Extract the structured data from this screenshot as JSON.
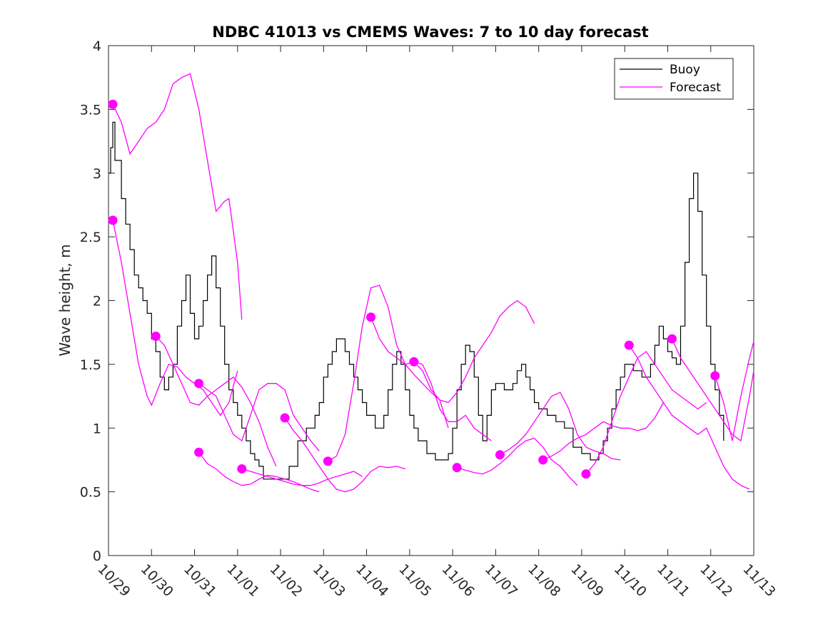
{
  "chart_data": {
    "type": "line",
    "title": "NDBC 41013 vs CMEMS Waves: 7 to 10 day forecast",
    "xlabel": "",
    "ylabel": "Wave height, m",
    "xlim": [
      0,
      15
    ],
    "ylim": [
      0,
      4
    ],
    "yticks": [
      0,
      0.5,
      1,
      1.5,
      2,
      2.5,
      3,
      3.5,
      4
    ],
    "ytick_labels": [
      "0",
      "0.5",
      "1",
      "1.5",
      "2",
      "2.5",
      "3",
      "3.5",
      "4"
    ],
    "xtick_labels": [
      "10/29",
      "10/30",
      "10/31",
      "11/01",
      "11/02",
      "11/03",
      "11/04",
      "11/05",
      "11/06",
      "11/07",
      "11/08",
      "11/09",
      "11/10",
      "11/11",
      "11/12",
      "11/13"
    ],
    "legend": {
      "position": "top-right",
      "entries": [
        "Buoy",
        "Forecast"
      ]
    },
    "colors": {
      "buoy": "#000000",
      "forecast": "#ff00ff",
      "axis": "#262626"
    },
    "buoy": {
      "name": "Buoy",
      "x": [
        0,
        0.05,
        0.1,
        0.15,
        0.2,
        0.3,
        0.4,
        0.5,
        0.6,
        0.7,
        0.8,
        0.9,
        1.0,
        1.1,
        1.2,
        1.3,
        1.4,
        1.5,
        1.6,
        1.7,
        1.8,
        1.9,
        2.0,
        2.1,
        2.2,
        2.3,
        2.4,
        2.5,
        2.6,
        2.7,
        2.8,
        2.9,
        3.0,
        3.1,
        3.2,
        3.3,
        3.4,
        3.5,
        3.6,
        3.8,
        4.0,
        4.2,
        4.4,
        4.6,
        4.8,
        4.9,
        5.0,
        5.1,
        5.2,
        5.3,
        5.4,
        5.5,
        5.6,
        5.7,
        5.8,
        5.9,
        6.0,
        6.2,
        6.4,
        6.5,
        6.6,
        6.7,
        6.8,
        6.9,
        7.0,
        7.1,
        7.2,
        7.4,
        7.6,
        7.8,
        7.9,
        8.0,
        8.1,
        8.2,
        8.3,
        8.4,
        8.5,
        8.6,
        8.7,
        8.8,
        8.9,
        9.0,
        9.2,
        9.4,
        9.5,
        9.6,
        9.7,
        9.8,
        9.9,
        10.0,
        10.2,
        10.4,
        10.6,
        10.8,
        11.0,
        11.2,
        11.4,
        11.5,
        11.6,
        11.7,
        11.8,
        11.9,
        12.0,
        12.2,
        12.4,
        12.6,
        12.7,
        12.8,
        12.9,
        13.0,
        13.1,
        13.2,
        13.3,
        13.4,
        13.5,
        13.6,
        13.7,
        13.8,
        13.9,
        14.0,
        14.1,
        14.2,
        14.3
      ],
      "values": [
        3.0,
        3.2,
        3.4,
        3.1,
        3.1,
        2.8,
        2.6,
        2.4,
        2.2,
        2.1,
        2.0,
        1.9,
        1.7,
        1.6,
        1.4,
        1.3,
        1.4,
        1.5,
        1.8,
        2.0,
        2.2,
        1.9,
        1.7,
        1.8,
        2.0,
        2.2,
        2.35,
        2.1,
        1.8,
        1.5,
        1.3,
        1.2,
        1.1,
        1.0,
        0.9,
        0.8,
        0.75,
        0.7,
        0.6,
        0.6,
        0.6,
        0.7,
        0.9,
        1.0,
        1.1,
        1.2,
        1.4,
        1.5,
        1.6,
        1.7,
        1.7,
        1.6,
        1.5,
        1.4,
        1.3,
        1.2,
        1.1,
        1.0,
        1.1,
        1.3,
        1.5,
        1.6,
        1.5,
        1.3,
        1.1,
        1.0,
        0.9,
        0.8,
        0.75,
        0.75,
        0.8,
        1.0,
        1.3,
        1.5,
        1.65,
        1.6,
        1.4,
        1.1,
        0.9,
        1.1,
        1.3,
        1.35,
        1.3,
        1.35,
        1.45,
        1.5,
        1.4,
        1.3,
        1.2,
        1.15,
        1.1,
        1.05,
        1.0,
        0.85,
        0.8,
        0.75,
        0.8,
        0.9,
        1.0,
        1.15,
        1.3,
        1.4,
        1.5,
        1.45,
        1.4,
        1.5,
        1.65,
        1.8,
        1.7,
        1.6,
        1.55,
        1.5,
        1.8,
        2.3,
        2.8,
        3.0,
        2.7,
        2.2,
        1.8,
        1.5,
        1.3,
        1.1,
        0.9
      ]
    },
    "forecasts": [
      {
        "name": "Forecast",
        "x": [
          0.1,
          0.3,
          0.5,
          0.7,
          0.9,
          1.1,
          1.3,
          1.5,
          1.7,
          1.9,
          2.1,
          2.3,
          2.5,
          2.7,
          2.8,
          3.0,
          3.1
        ],
        "values": [
          3.54,
          3.4,
          3.15,
          3.25,
          3.35,
          3.4,
          3.5,
          3.7,
          3.75,
          3.78,
          3.5,
          3.1,
          2.7,
          2.78,
          2.8,
          2.3,
          1.85
        ]
      },
      {
        "name": "Forecast",
        "x": [
          0.1,
          0.3,
          0.5,
          0.7,
          0.9,
          1.0,
          1.2,
          1.4,
          1.6,
          1.8,
          2.0,
          2.2,
          2.4,
          2.6,
          2.8,
          3.0
        ],
        "values": [
          2.63,
          2.3,
          1.9,
          1.5,
          1.25,
          1.18,
          1.35,
          1.5,
          1.48,
          1.4,
          1.35,
          1.3,
          1.2,
          1.1,
          1.2,
          1.45
        ]
      },
      {
        "name": "Forecast",
        "x": [
          1.1,
          1.3,
          1.5,
          1.7,
          1.9,
          2.1,
          2.3,
          2.5,
          2.7,
          2.9,
          3.1,
          3.3,
          3.5,
          3.7,
          3.9
        ],
        "values": [
          1.72,
          1.65,
          1.5,
          1.35,
          1.2,
          1.18,
          1.25,
          1.3,
          1.35,
          1.4,
          1.32,
          1.2,
          1.05,
          0.85,
          0.7
        ]
      },
      {
        "name": "Forecast",
        "x": [
          2.1,
          2.3,
          2.5,
          2.7,
          2.9,
          3.1,
          3.3,
          3.5,
          3.7,
          3.9,
          4.1,
          4.3,
          4.5,
          4.7,
          4.9
        ],
        "values": [
          1.35,
          1.3,
          1.25,
          1.1,
          0.95,
          0.9,
          1.1,
          1.3,
          1.35,
          1.35,
          1.3,
          1.1,
          1.0,
          0.9,
          0.82
        ]
      },
      {
        "name": "Forecast",
        "x": [
          2.1,
          2.3,
          2.5,
          2.7,
          2.9,
          3.1,
          3.3,
          3.5,
          3.7,
          3.9,
          4.1,
          4.3,
          4.5,
          4.7,
          4.9
        ],
        "values": [
          0.81,
          0.72,
          0.68,
          0.62,
          0.58,
          0.55,
          0.56,
          0.6,
          0.63,
          0.62,
          0.6,
          0.58,
          0.55,
          0.52,
          0.5
        ]
      },
      {
        "name": "Forecast",
        "x": [
          3.1,
          3.3,
          3.5,
          3.7,
          3.9,
          4.1,
          4.3,
          4.5,
          4.7,
          4.9,
          5.1,
          5.3,
          5.5,
          5.7,
          5.9
        ],
        "values": [
          0.68,
          0.66,
          0.64,
          0.62,
          0.6,
          0.58,
          0.56,
          0.55,
          0.55,
          0.57,
          0.6,
          0.62,
          0.64,
          0.66,
          0.62
        ]
      },
      {
        "name": "Forecast",
        "x": [
          4.1,
          4.3,
          4.5,
          4.7,
          4.9,
          5.1,
          5.3,
          5.5,
          5.7,
          5.9,
          6.1,
          6.3,
          6.5,
          6.7,
          6.9
        ],
        "values": [
          1.08,
          0.98,
          0.9,
          0.8,
          0.7,
          0.6,
          0.52,
          0.5,
          0.52,
          0.58,
          0.66,
          0.7,
          0.69,
          0.7,
          0.68
        ]
      },
      {
        "name": "Forecast",
        "x": [
          5.1,
          5.3,
          5.5,
          5.7,
          5.9,
          6.1,
          6.3,
          6.5,
          6.7,
          6.9,
          7.1,
          7.3,
          7.5,
          7.7,
          7.9
        ],
        "values": [
          0.74,
          0.78,
          0.95,
          1.35,
          1.8,
          2.1,
          2.12,
          1.95,
          1.65,
          1.5,
          1.42,
          1.35,
          1.28,
          1.22,
          1.0
        ]
      },
      {
        "name": "Forecast",
        "x": [
          6.1,
          6.3,
          6.5,
          6.7,
          6.9,
          7.1,
          7.3,
          7.5,
          7.7,
          7.9,
          8.1,
          8.3,
          8.5,
          8.7,
          8.9
        ],
        "values": [
          1.87,
          1.7,
          1.6,
          1.55,
          1.5,
          1.52,
          1.5,
          1.35,
          1.15,
          1.05,
          1.05,
          1.1,
          1.0,
          0.95,
          0.9
        ]
      },
      {
        "name": "Forecast",
        "x": [
          7.1,
          7.3,
          7.5,
          7.7,
          7.9,
          8.1,
          8.3,
          8.5,
          8.7,
          8.9,
          9.1,
          9.3,
          9.5,
          9.7,
          9.9
        ],
        "values": [
          1.52,
          1.45,
          1.3,
          1.22,
          1.2,
          1.28,
          1.4,
          1.55,
          1.65,
          1.75,
          1.88,
          1.95,
          2.0,
          1.95,
          1.82
        ]
      },
      {
        "name": "Forecast",
        "x": [
          8.1,
          8.3,
          8.5,
          8.7,
          8.9,
          9.1,
          9.3,
          9.5,
          9.7,
          9.9,
          10.1,
          10.3,
          10.5,
          10.7,
          10.9
        ],
        "values": [
          0.69,
          0.67,
          0.65,
          0.64,
          0.67,
          0.72,
          0.78,
          0.85,
          0.9,
          0.92,
          0.85,
          0.75,
          0.7,
          0.62,
          0.55
        ]
      },
      {
        "name": "Forecast",
        "x": [
          9.1,
          9.3,
          9.5,
          9.7,
          9.9,
          10.1,
          10.3,
          10.5,
          10.7,
          10.9,
          11.1,
          11.3,
          11.5,
          11.7,
          11.9
        ],
        "values": [
          0.79,
          0.83,
          0.88,
          0.95,
          1.05,
          1.15,
          1.25,
          1.28,
          1.15,
          0.95,
          0.85,
          0.82,
          0.8,
          0.76,
          0.75
        ]
      },
      {
        "name": "Forecast",
        "x": [
          10.1,
          10.3,
          10.5,
          10.7,
          10.9,
          11.1,
          11.3,
          11.5,
          11.7,
          11.9,
          12.1,
          12.3,
          12.5,
          12.7,
          12.9
        ],
        "values": [
          0.75,
          0.78,
          0.82,
          0.88,
          0.92,
          0.95,
          1.0,
          1.05,
          1.02,
          1.0,
          1.0,
          0.98,
          1.0,
          1.08,
          1.2
        ]
      },
      {
        "name": "Forecast",
        "x": [
          11.1,
          11.3,
          11.5,
          11.7,
          11.9,
          12.1,
          12.3,
          12.5,
          12.7,
          12.9,
          13.1,
          13.3,
          13.5,
          13.7,
          13.9
        ],
        "values": [
          0.64,
          0.72,
          0.85,
          1.05,
          1.25,
          1.4,
          1.55,
          1.6,
          1.5,
          1.4,
          1.3,
          1.25,
          1.2,
          1.15,
          1.2
        ]
      },
      {
        "name": "Forecast",
        "x": [
          12.1,
          12.3,
          12.5,
          12.7,
          12.9,
          13.1,
          13.3,
          13.5,
          13.7,
          13.9,
          14.1,
          14.3,
          14.5,
          14.7,
          14.9
        ],
        "values": [
          1.65,
          1.55,
          1.4,
          1.3,
          1.2,
          1.1,
          1.05,
          1.0,
          0.95,
          1.0,
          0.85,
          0.7,
          0.6,
          0.55,
          0.52
        ]
      },
      {
        "name": "Forecast",
        "x": [
          13.1,
          13.3,
          13.5,
          13.7,
          13.9,
          14.1,
          14.3,
          14.5,
          14.7,
          14.9,
          15.0
        ],
        "values": [
          1.7,
          1.55,
          1.45,
          1.35,
          1.25,
          1.15,
          1.05,
          0.95,
          0.9,
          1.25,
          1.45
        ]
      },
      {
        "name": "Forecast",
        "x": [
          14.1,
          14.3,
          14.5,
          14.7,
          14.9,
          15.0
        ],
        "values": [
          1.41,
          1.2,
          0.9,
          1.25,
          1.55,
          1.68
        ]
      }
    ]
  }
}
